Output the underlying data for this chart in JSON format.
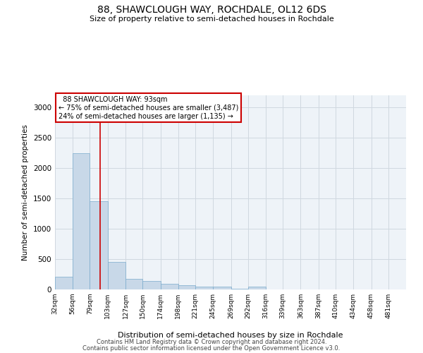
{
  "title": "88, SHAWCLOUGH WAY, ROCHDALE, OL12 6DS",
  "subtitle": "Size of property relative to semi-detached houses in Rochdale",
  "xlabel": "Distribution of semi-detached houses by size in Rochdale",
  "ylabel": "Number of semi-detached properties",
  "footer1": "Contains HM Land Registry data © Crown copyright and database right 2024.",
  "footer2": "Contains public sector information licensed under the Open Government Licence v3.0.",
  "annotation_title": "88 SHAWCLOUGH WAY: 93sqm",
  "annotation_line1": "← 75% of semi-detached houses are smaller (3,487)",
  "annotation_line2": "24% of semi-detached houses are larger (1,135) →",
  "property_size": 93,
  "bar_edges": [
    32,
    56,
    79,
    103,
    127,
    150,
    174,
    198,
    221,
    245,
    269,
    292,
    316,
    339,
    363,
    387,
    410,
    434,
    458,
    481,
    505
  ],
  "bar_values": [
    210,
    2250,
    1450,
    450,
    170,
    140,
    95,
    75,
    50,
    50,
    10,
    50,
    5,
    5,
    3,
    2,
    1,
    1,
    1,
    1
  ],
  "bar_color": "#c8d8e8",
  "bar_edgecolor": "#7aabcc",
  "vline_color": "#cc0000",
  "grid_color": "#d0d8e0",
  "bg_color": "#eef3f8",
  "annotation_box_color": "#cc0000",
  "ylim": [
    0,
    3200
  ],
  "yticks": [
    0,
    500,
    1000,
    1500,
    2000,
    2500,
    3000
  ]
}
